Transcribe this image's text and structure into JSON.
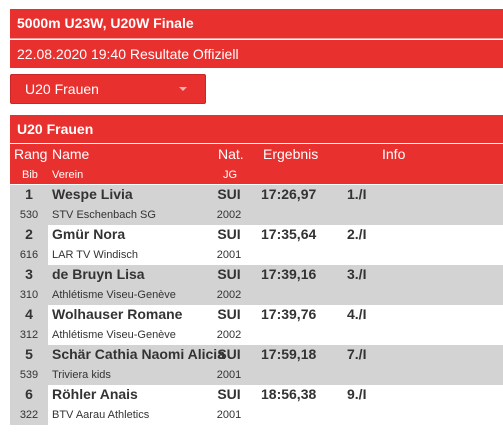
{
  "header": {
    "title": "5000m U23W, U20W Finale",
    "subtitle": "22.08.2020 19:40 Resultate Offiziell"
  },
  "category_select": {
    "selected": "U20 Frauen"
  },
  "section": {
    "title": "U20 Frauen"
  },
  "table": {
    "columns": {
      "rank": "Rang",
      "bib": "Bib",
      "name": "Name",
      "club": "Verein",
      "nat": "Nat.",
      "year": "JG",
      "result": "Ergebnis",
      "info": "Info"
    },
    "rows": [
      {
        "rank": "1",
        "bib": "530",
        "name": "Wespe Livia",
        "club": "STV Eschenbach SG",
        "nat": "SUI",
        "year": "2002",
        "time": "17:26,97",
        "place": "1./I"
      },
      {
        "rank": "2",
        "bib": "616",
        "name": "Gmür Nora",
        "club": "LAR TV Windisch",
        "nat": "SUI",
        "year": "2001",
        "time": "17:35,64",
        "place": "2./I"
      },
      {
        "rank": "3",
        "bib": "310",
        "name": "de Bruyn Lisa",
        "club": "Athlétisme Viseu-Genève",
        "nat": "SUI",
        "year": "2002",
        "time": "17:39,16",
        "place": "3./I"
      },
      {
        "rank": "4",
        "bib": "312",
        "name": "Wolhauser Romane",
        "club": "Athlétisme Viseu-Genève",
        "nat": "SUI",
        "year": "2002",
        "time": "17:39,76",
        "place": "4./I"
      },
      {
        "rank": "5",
        "bib": "539",
        "name": "Schär Cathia Naomi Alicia",
        "club": "Triviera kids",
        "nat": "SUI",
        "year": "2001",
        "time": "17:59,18",
        "place": "7./I"
      },
      {
        "rank": "6",
        "bib": "322",
        "name": "Röhler Anais",
        "club": "BTV Aarau Athletics",
        "nat": "SUI",
        "year": "2001",
        "time": "18:56,38",
        "place": "9./I"
      }
    ]
  },
  "colors": {
    "brand_red": "#e8302f",
    "row_gray": "#d3d3d3"
  }
}
